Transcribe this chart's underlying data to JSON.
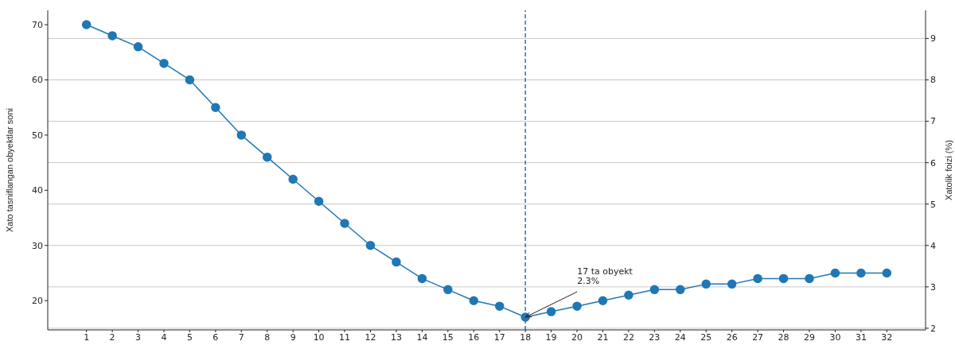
{
  "chart_data": {
    "type": "line",
    "x": [
      1,
      2,
      3,
      4,
      5,
      6,
      7,
      8,
      9,
      10,
      11,
      12,
      13,
      14,
      15,
      16,
      17,
      18,
      19,
      20,
      21,
      22,
      23,
      24,
      25,
      26,
      27,
      28,
      29,
      30,
      31,
      32
    ],
    "series": [
      {
        "color": "#1f77b4",
        "values": [
          70,
          68,
          66,
          63,
          60,
          55,
          50,
          46,
          42,
          38,
          34,
          30,
          27,
          24,
          22,
          20,
          19,
          17,
          18,
          19,
          20,
          21,
          22,
          22,
          23,
          23,
          24,
          24,
          24,
          25,
          25,
          25
        ]
      }
    ],
    "xlim": [
      -0.5,
      33.5
    ],
    "xticks": [
      1,
      2,
      3,
      4,
      5,
      6,
      7,
      8,
      9,
      10,
      11,
      12,
      13,
      14,
      15,
      16,
      17,
      18,
      19,
      20,
      21,
      22,
      23,
      24,
      25,
      26,
      27,
      28,
      29,
      30,
      31,
      32
    ],
    "ylim": [
      14.7,
      72.6
    ],
    "yticks": [
      20,
      30,
      40,
      50,
      60,
      70
    ],
    "y2lim": [
      1.96,
      9.68
    ],
    "y2ticks": [
      2,
      3,
      4,
      5,
      6,
      7,
      8,
      9
    ],
    "ylabel": "Xato tasniflangan obyektlar soni",
    "y2label": "Xatolik foizi (%)",
    "ref_lines": [
      {
        "axis": "x",
        "value": 18,
        "color": "#1f77b4",
        "line_style": "dashed"
      }
    ],
    "annotations": [
      {
        "text": "17 ta obyekt\n2.3%",
        "x": 18,
        "y": 17
      }
    ],
    "grid": "y2",
    "marker": "circle",
    "line_style": "solid",
    "legend": false
  }
}
